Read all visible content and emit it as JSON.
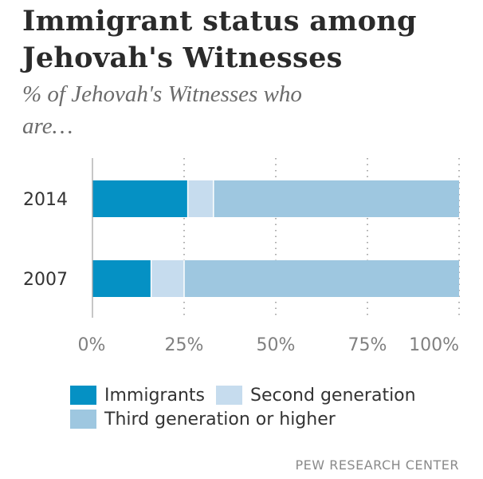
{
  "title": "Immigrant status among Jehovah's Witnesses",
  "subtitle": "% of Jehovah's Witnesses who are…",
  "source": "PEW RESEARCH CENTER",
  "colors": {
    "immigrants": "#0591c4",
    "second_generation": "#c6dcee",
    "third_generation": "#9ec7e0"
  },
  "legend": [
    {
      "label": "Immigrants",
      "color": "#0591c4"
    },
    {
      "label": "Second generation",
      "color": "#c6dcee"
    },
    {
      "label": "Third generation or higher",
      "color": "#9ec7e0"
    }
  ],
  "chart_data": {
    "type": "bar",
    "orientation": "horizontal",
    "stacked": true,
    "categories": [
      "2014",
      "2007"
    ],
    "series": [
      {
        "name": "Immigrants",
        "values": [
          26,
          16
        ]
      },
      {
        "name": "Second generation",
        "values": [
          7,
          9
        ]
      },
      {
        "name": "Third generation or higher",
        "values": [
          67,
          75
        ]
      }
    ],
    "xlim": [
      0,
      100
    ],
    "x_ticks": [
      "0%",
      "25%",
      "50%",
      "75%",
      "100%"
    ],
    "tick_values": [
      0,
      25,
      50,
      75,
      100
    ],
    "grid": "vertical dotted",
    "legend_position": "bottom"
  }
}
